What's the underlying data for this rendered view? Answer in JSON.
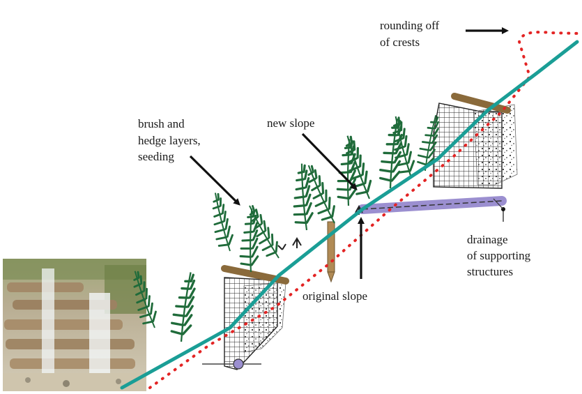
{
  "labels": {
    "rounding_line1": "rounding off",
    "rounding_line2": "of crests",
    "brush_line1": "brush and",
    "brush_line2": "hedge layers,",
    "brush_line3": "seeding",
    "new_slope": "new slope",
    "original_slope": "original slope",
    "drainage_line1": "drainage",
    "drainage_line2": "of supporting",
    "drainage_line3": "structures"
  },
  "colors": {
    "new_slope_line": "#1a9e96",
    "original_slope_line": "#e32424",
    "vegetation": "#1f6b3a",
    "drain_pipe": "#9b8fd0",
    "timber": "#8a6a3b",
    "arrow": "#111111"
  },
  "icons": {
    "photo": "timber-crib-waterfall-photo",
    "structure": "crib-wall-icon",
    "plant": "fern-icon",
    "stake": "wooden-stake-icon"
  }
}
